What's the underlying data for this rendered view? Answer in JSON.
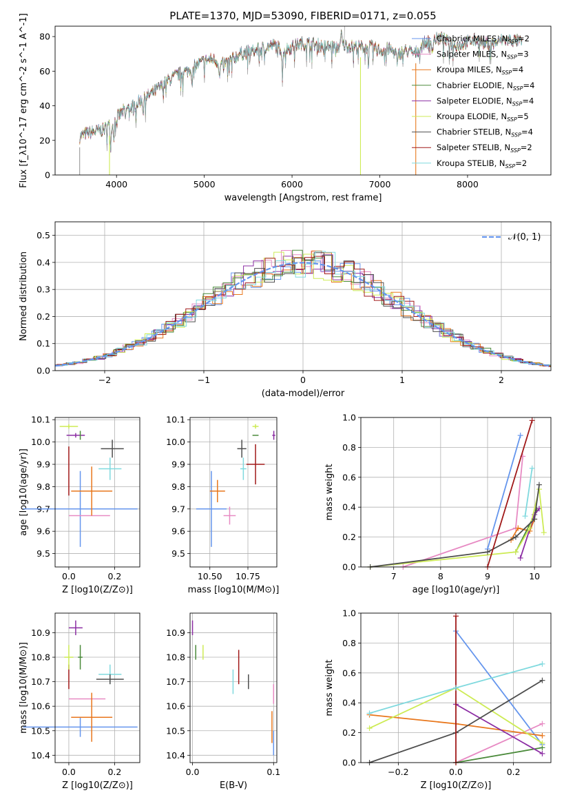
{
  "title": "PLATE=1370, MJD=53090, FIBERID=0171, z=0.055",
  "chart_data": [
    {
      "id": "spectrum",
      "type": "line",
      "xlabel": "wavelength [Angstrom, rest frame]",
      "ylabel": "Flux [f_λ10^-17 erg cm^-2 s^-1 A^-1]",
      "xlim": [
        3300,
        8950
      ],
      "ylim": [
        0,
        86
      ],
      "xticks": [
        4000,
        5000,
        6000,
        7000,
        8000
      ],
      "yticks": [
        0,
        20,
        40,
        60,
        80
      ],
      "grid": false,
      "legend_position": "upper-right",
      "observed_envelope": [
        [
          3580,
          22
        ],
        [
          3650,
          24
        ],
        [
          3750,
          25
        ],
        [
          3850,
          26
        ],
        [
          3950,
          30
        ],
        [
          4000,
          33
        ],
        [
          4100,
          38
        ],
        [
          4200,
          40
        ],
        [
          4300,
          44
        ],
        [
          4400,
          47
        ],
        [
          4500,
          51
        ],
        [
          4600,
          55
        ],
        [
          4700,
          58
        ],
        [
          4800,
          60
        ],
        [
          4900,
          63
        ],
        [
          5000,
          66
        ],
        [
          5100,
          67
        ],
        [
          5200,
          64
        ],
        [
          5300,
          66
        ],
        [
          5400,
          70
        ],
        [
          5500,
          71
        ],
        [
          5600,
          72
        ],
        [
          5700,
          74
        ],
        [
          5800,
          75
        ],
        [
          5900,
          72
        ],
        [
          6000,
          74
        ],
        [
          6100,
          76
        ],
        [
          6200,
          76
        ],
        [
          6300,
          75
        ],
        [
          6400,
          74
        ],
        [
          6500,
          74
        ],
        [
          6600,
          75
        ],
        [
          6700,
          74
        ],
        [
          6800,
          74
        ],
        [
          6900,
          74
        ],
        [
          7000,
          72
        ],
        [
          7100,
          73
        ],
        [
          7200,
          70
        ],
        [
          7300,
          72
        ],
        [
          7400,
          70
        ],
        [
          7500,
          76
        ],
        [
          7600,
          78
        ],
        [
          7700,
          79
        ],
        [
          7800,
          76
        ],
        [
          7900,
          75
        ],
        [
          8000,
          77
        ],
        [
          8100,
          78
        ],
        [
          8200,
          76
        ],
        [
          8300,
          76
        ],
        [
          8400,
          78
        ],
        [
          8500,
          78
        ],
        [
          8600,
          77
        ]
      ],
      "series": [
        {
          "name": "Chabrier MILES",
          "nssp": "2",
          "color": "#6495ED"
        },
        {
          "name": "Salpeter MILES",
          "nssp": "3",
          "color": "#E78AC3"
        },
        {
          "name": "Kroupa MILES",
          "nssp": "4",
          "color": "#E8761B"
        },
        {
          "name": "Chabrier ELODIE",
          "nssp": "4",
          "color": "#4A8A3A"
        },
        {
          "name": "Salpeter ELODIE",
          "nssp": "4",
          "color": "#8B2CA3"
        },
        {
          "name": "Kroupa ELODIE",
          "nssp": "5",
          "color": "#CDEB54"
        },
        {
          "name": "Chabrier STELIB",
          "nssp": "4",
          "color": "#4D4D4D"
        },
        {
          "name": "Salpeter STELIB",
          "nssp": "2",
          "color": "#A01818"
        },
        {
          "name": "Kroupa STELIB",
          "nssp": "2",
          "color": "#7FD9DE"
        }
      ]
    },
    {
      "id": "residuals",
      "type": "line",
      "xlabel": "(data-model)/error",
      "ylabel": "Normed distribution",
      "xlim": [
        -2.5,
        2.5
      ],
      "ylim": [
        0,
        0.55
      ],
      "xticks": [
        -2,
        -1,
        0,
        1,
        2
      ],
      "yticks": [
        0.0,
        0.1,
        0.2,
        0.3,
        0.4,
        0.5
      ],
      "grid": true,
      "legend_position": "upper-right",
      "reference_label": "𝒩(0, 1)",
      "reference_color": "#6495ED"
    },
    {
      "id": "age-vs-Z",
      "type": "scatter",
      "xlabel": "Z [log10(Z/Z⊙)]",
      "ylabel": "age  [log10(age/yr)]",
      "xlim": [
        -0.06,
        0.31
      ],
      "ylim": [
        9.44,
        10.11
      ],
      "xticks": [
        0.0,
        0.2
      ],
      "yticks": [
        9.5,
        9.6,
        9.7,
        9.8,
        9.9,
        10.0,
        10.1
      ],
      "grid": true,
      "points": [
        {
          "c": "#6495ED",
          "x": 0.05,
          "xe": 0.25,
          "y": 9.7,
          "ye": 0.17
        },
        {
          "c": "#E78AC3",
          "x": 0.09,
          "xe": 0.09,
          "y": 9.67,
          "ye": 0.0
        },
        {
          "c": "#E8761B",
          "x": 0.1,
          "xe": 0.09,
          "y": 9.78,
          "ye": 0.11
        },
        {
          "c": "#A01818",
          "x": 0.0,
          "xe": 0.0,
          "y": 9.87,
          "ye": 0.11
        },
        {
          "c": "#7FD9DE",
          "x": 0.18,
          "xe": 0.05,
          "y": 9.88,
          "ye": 0.05
        },
        {
          "c": "#4D4D4D",
          "x": 0.19,
          "xe": 0.05,
          "y": 9.97,
          "ye": 0.04
        },
        {
          "c": "#CDEB54",
          "x": 0.0,
          "xe": 0.04,
          "y": 10.07,
          "ye": 0.01
        },
        {
          "c": "#8B2CA3",
          "x": 0.03,
          "xe": 0.04,
          "y": 10.03,
          "ye": 0.01
        },
        {
          "c": "#4A8A3A",
          "x": 0.05,
          "xe": 0.0,
          "y": 10.03,
          "ye": 0.02
        }
      ]
    },
    {
      "id": "age-vs-mass",
      "type": "scatter",
      "xlabel": "mass [log10(M/M⊙)]",
      "ylabel": "",
      "xlim": [
        10.37,
        10.94
      ],
      "ylim": [
        9.44,
        10.11
      ],
      "xticks": [
        10.5,
        10.75
      ],
      "yticks": [
        9.5,
        9.6,
        9.7,
        9.8,
        9.9,
        10.0,
        10.1
      ],
      "grid": true,
      "points": [
        {
          "c": "#6495ED",
          "x": 10.51,
          "xe": 0.1,
          "y": 9.7,
          "ye": 0.17
        },
        {
          "c": "#E78AC3",
          "x": 10.63,
          "xe": 0.04,
          "y": 9.67,
          "ye": 0.04
        },
        {
          "c": "#E8761B",
          "x": 10.55,
          "xe": 0.05,
          "y": 9.78,
          "ye": 0.05
        },
        {
          "c": "#A01818",
          "x": 10.8,
          "xe": 0.06,
          "y": 9.9,
          "ye": 0.09
        },
        {
          "c": "#7FD9DE",
          "x": 10.72,
          "xe": 0.02,
          "y": 9.88,
          "ye": 0.05
        },
        {
          "c": "#4D4D4D",
          "x": 10.71,
          "xe": 0.03,
          "y": 9.97,
          "ye": 0.04
        },
        {
          "c": "#CDEB54",
          "x": 10.8,
          "xe": 0.02,
          "y": 10.07,
          "ye": 0.01
        },
        {
          "c": "#8B2CA3",
          "x": 10.92,
          "xe": 0.01,
          "y": 10.03,
          "ye": 0.02
        },
        {
          "c": "#4A8A3A",
          "x": 10.8,
          "xe": 0.02,
          "y": 10.03,
          "ye": 0.0
        }
      ]
    },
    {
      "id": "weight-vs-age",
      "type": "line",
      "xlabel": "age  [log10(age/yr)]",
      "ylabel": "mass weight",
      "xlim": [
        6.3,
        10.35
      ],
      "ylim": [
        0,
        1.0
      ],
      "xticks": [
        7,
        8,
        9,
        10
      ],
      "yticks": [
        0.0,
        0.2,
        0.4,
        0.6,
        0.8,
        1.0
      ],
      "grid": true,
      "series": [
        {
          "c": "#6495ED",
          "pts": [
            [
              9.0,
              0.12
            ],
            [
              9.7,
              0.88
            ]
          ]
        },
        {
          "c": "#E78AC3",
          "pts": [
            [
              7.2,
              0.0
            ],
            [
              9.6,
              0.26
            ],
            [
              9.75,
              0.74
            ]
          ]
        },
        {
          "c": "#E8761B",
          "pts": [
            [
              9.5,
              0.18
            ],
            [
              9.65,
              0.26
            ],
            [
              9.9,
              0.24
            ],
            [
              10.0,
              0.32
            ]
          ]
        },
        {
          "c": "#4A8A3A",
          "pts": [
            [
              9.6,
              0.1
            ],
            [
              10.05,
              0.38
            ]
          ]
        },
        {
          "c": "#8B2CA3",
          "pts": [
            [
              9.7,
              0.06
            ],
            [
              10.0,
              0.35
            ],
            [
              10.1,
              0.39
            ]
          ]
        },
        {
          "c": "#CDEB54",
          "pts": [
            [
              6.5,
              0.0
            ],
            [
              9.6,
              0.1
            ],
            [
              9.9,
              0.26
            ],
            [
              10.1,
              0.52
            ],
            [
              10.2,
              0.23
            ]
          ]
        },
        {
          "c": "#4D4D4D",
          "pts": [
            [
              6.5,
              0.0
            ],
            [
              9.0,
              0.1
            ],
            [
              9.6,
              0.2
            ],
            [
              10.0,
              0.32
            ],
            [
              10.1,
              0.55
            ]
          ]
        },
        {
          "c": "#A01818",
          "pts": [
            [
              9.0,
              0.0
            ],
            [
              9.95,
              0.98
            ]
          ]
        },
        {
          "c": "#7FD9DE",
          "pts": [
            [
              9.8,
              0.34
            ],
            [
              9.95,
              0.66
            ]
          ]
        }
      ]
    },
    {
      "id": "mass-vs-Z",
      "type": "scatter",
      "xlabel": "Z [log10(Z/Z⊙)]",
      "ylabel": "mass [log10(M/M⊙)]",
      "xlim": [
        -0.06,
        0.31
      ],
      "ylim": [
        10.37,
        10.98
      ],
      "xticks": [
        0.0,
        0.2
      ],
      "yticks": [
        10.4,
        10.5,
        10.6,
        10.7,
        10.8,
        10.9
      ],
      "grid": true,
      "points": [
        {
          "c": "#6495ED",
          "x": 0.05,
          "xe": 0.25,
          "y": 10.515,
          "ye": 0.04
        },
        {
          "c": "#E78AC3",
          "x": 0.08,
          "xe": 0.08,
          "y": 10.63,
          "ye": 0.0
        },
        {
          "c": "#E8761B",
          "x": 0.1,
          "xe": 0.09,
          "y": 10.555,
          "ye": 0.1
        },
        {
          "c": "#A01818",
          "x": 0.0,
          "xe": 0.0,
          "y": 10.72,
          "ye": 0.05
        },
        {
          "c": "#7FD9DE",
          "x": 0.18,
          "xe": 0.05,
          "y": 10.73,
          "ye": 0.04
        },
        {
          "c": "#4D4D4D",
          "x": 0.18,
          "xe": 0.06,
          "y": 10.71,
          "ye": 0.02
        },
        {
          "c": "#CDEB54",
          "x": 0.0,
          "xe": 0.02,
          "y": 10.8,
          "ye": 0.05
        },
        {
          "c": "#8B2CA3",
          "x": 0.03,
          "xe": 0.03,
          "y": 10.92,
          "ye": 0.03
        },
        {
          "c": "#4A8A3A",
          "x": 0.05,
          "xe": 0.01,
          "y": 10.8,
          "ye": 0.05
        }
      ]
    },
    {
      "id": "mass-vs-ebv",
      "type": "scatter",
      "xlabel": "E(B-V)",
      "ylabel": "",
      "xlim": [
        -0.003,
        0.104
      ],
      "ylim": [
        10.37,
        10.98
      ],
      "xticks": [
        0.0,
        0.1
      ],
      "yticks": [
        10.4,
        10.5,
        10.6,
        10.7,
        10.8,
        10.9
      ],
      "grid": true,
      "points": [
        {
          "c": "#6495ED",
          "x": 0.1,
          "xe": 0.0,
          "y": 10.45,
          "ye": 0.05
        },
        {
          "c": "#E78AC3",
          "x": 0.1,
          "xe": 0.0,
          "y": 10.65,
          "ye": 0.04
        },
        {
          "c": "#E8761B",
          "x": 0.098,
          "xe": 0.0,
          "y": 10.515,
          "ye": 0.065
        },
        {
          "c": "#A01818",
          "x": 0.057,
          "xe": 0.0,
          "y": 10.76,
          "ye": 0.07
        },
        {
          "c": "#7FD9DE",
          "x": 0.05,
          "xe": 0.0,
          "y": 10.7,
          "ye": 0.05
        },
        {
          "c": "#4D4D4D",
          "x": 0.069,
          "xe": 0.0,
          "y": 10.7,
          "ye": 0.03
        },
        {
          "c": "#CDEB54",
          "x": 0.013,
          "xe": 0.0,
          "y": 10.82,
          "ye": 0.03
        },
        {
          "c": "#8B2CA3",
          "x": 0.0,
          "xe": 0.0,
          "y": 10.92,
          "ye": 0.03
        },
        {
          "c": "#4A8A3A",
          "x": 0.004,
          "xe": 0.0,
          "y": 10.82,
          "ye": 0.03
        }
      ]
    },
    {
      "id": "weight-vs-Z",
      "type": "line",
      "xlabel": "Z [log10(Z/Z⊙)]",
      "ylabel": "mass weight",
      "xlim": [
        -0.33,
        0.33
      ],
      "ylim": [
        0,
        1.0
      ],
      "xticks": [
        -0.2,
        0.0,
        0.2
      ],
      "yticks": [
        0.0,
        0.2,
        0.4,
        0.6,
        0.8,
        1.0
      ],
      "grid": true,
      "series": [
        {
          "c": "#6495ED",
          "pts": [
            [
              0.0,
              0.88
            ],
            [
              0.3,
              0.12
            ]
          ]
        },
        {
          "c": "#E78AC3",
          "pts": [
            [
              0.0,
              0.0
            ],
            [
              0.3,
              0.26
            ]
          ]
        },
        {
          "c": "#E8761B",
          "pts": [
            [
              -0.3,
              0.32
            ],
            [
              0.0,
              0.26
            ],
            [
              0.3,
              0.18
            ]
          ]
        },
        {
          "c": "#4A8A3A",
          "pts": [
            [
              0.0,
              0.0
            ],
            [
              0.3,
              0.1
            ]
          ]
        },
        {
          "c": "#8B2CA3",
          "pts": [
            [
              0.0,
              0.39
            ],
            [
              0.3,
              0.06
            ]
          ]
        },
        {
          "c": "#CDEB54",
          "pts": [
            [
              -0.3,
              0.23
            ],
            [
              0.0,
              0.5
            ],
            [
              0.3,
              0.13
            ]
          ]
        },
        {
          "c": "#4D4D4D",
          "pts": [
            [
              -0.3,
              0.0
            ],
            [
              0.0,
              0.2
            ],
            [
              0.3,
              0.55
            ]
          ]
        },
        {
          "c": "#A01818",
          "pts": [
            [
              0.0,
              0.0
            ],
            [
              0.0,
              0.98
            ]
          ]
        },
        {
          "c": "#7FD9DE",
          "pts": [
            [
              -0.3,
              0.33
            ],
            [
              0.0,
              0.5
            ],
            [
              0.3,
              0.66
            ]
          ]
        }
      ]
    }
  ]
}
